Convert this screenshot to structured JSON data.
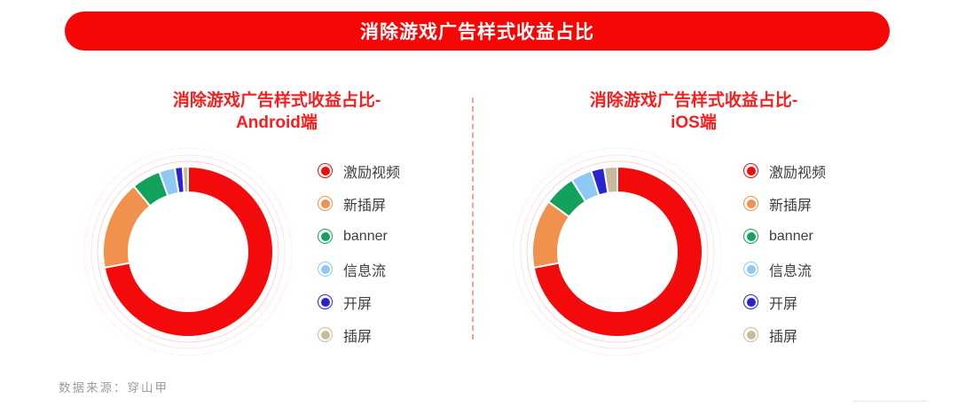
{
  "header": {
    "title": "消除游戏广告样式收益占比"
  },
  "footer": {
    "source": "数据来源：穿山甲"
  },
  "divider": {
    "style": "dashed-vertical",
    "color": "#f26e5a"
  },
  "theme": {
    "banner_bg": "#f70606",
    "banner_text": "#ffffff",
    "title_red": "#f81e1e",
    "legend_text": "#3d3d3d",
    "source_text": "#9c9c9c"
  },
  "chart_data": [
    {
      "type": "pie",
      "variant": "donut",
      "platform": "Android",
      "title": "消除游戏广告样式收益占比-Android端",
      "title_line1": "消除游戏广告样式收益占比-",
      "title_line2": "Android端",
      "categories": [
        "激励视频",
        "新插屏",
        "banner",
        "信息流",
        "开屏",
        "插屏"
      ],
      "values": [
        72,
        17,
        5.5,
        3,
        1.5,
        1
      ],
      "values_unit": "percent",
      "values_are_estimates": true,
      "colors": [
        "#f30b0b",
        "#f0924e",
        "#13a25c",
        "#8ec9f6",
        "#2a24cf",
        "#c7bb9c"
      ],
      "legend_position": "right",
      "start_angle": "top",
      "direction": "clockwise"
    },
    {
      "type": "pie",
      "variant": "donut",
      "platform": "iOS",
      "title": "消除游戏广告样式收益占比-iOS端",
      "title_line1": "消除游戏广告样式收益占比-",
      "title_line2": "iOS端",
      "categories": [
        "激励视频",
        "新插屏",
        "banner",
        "信息流",
        "开屏",
        "插屏"
      ],
      "values": [
        72,
        13,
        6,
        4,
        2.5,
        2.5
      ],
      "values_unit": "percent",
      "values_are_estimates": true,
      "colors": [
        "#f30b0b",
        "#f0924e",
        "#13a25c",
        "#8ec9f6",
        "#2a24cf",
        "#c7bb9c"
      ],
      "legend_position": "right",
      "start_angle": "top",
      "direction": "clockwise"
    }
  ]
}
